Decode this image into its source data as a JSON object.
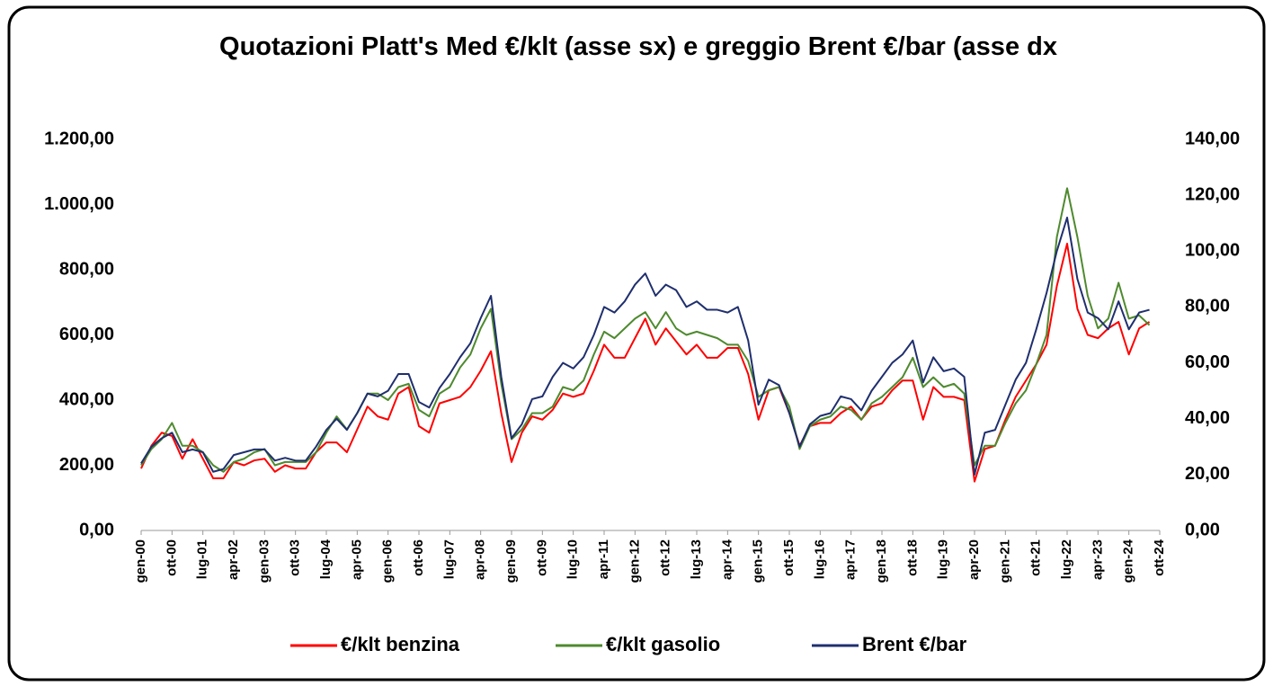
{
  "chart_data": {
    "type": "line",
    "title": "Quotazioni Platt's Med €/klt (asse sx) e greggio Brent €/bar (asse dx",
    "categories": [
      "gen-00",
      null,
      null,
      "ott-00",
      null,
      null,
      "lug-01",
      null,
      null,
      "apr-02",
      null,
      null,
      "gen-03",
      null,
      null,
      "ott-03",
      null,
      null,
      "lug-04",
      null,
      null,
      "apr-05",
      null,
      null,
      "gen-06",
      null,
      null,
      "ott-06",
      null,
      null,
      "lug-07",
      null,
      null,
      "apr-08",
      null,
      null,
      "gen-09",
      null,
      null,
      "ott-09",
      null,
      null,
      "lug-10",
      null,
      null,
      "apr-11",
      null,
      null,
      "gen-12",
      null,
      null,
      "ott-12",
      null,
      null,
      "lug-13",
      null,
      null,
      "apr-14",
      null,
      null,
      "gen-15",
      null,
      null,
      "ott-15",
      null,
      null,
      "lug-16",
      null,
      null,
      "apr-17",
      null,
      null,
      "gen-18",
      null,
      null,
      "ott-18",
      null,
      null,
      "lug-19",
      null,
      null,
      "apr-20",
      null,
      null,
      "gen-21",
      null,
      null,
      "ott-21",
      null,
      null,
      "lug-22",
      null,
      null,
      "apr-23",
      null,
      null,
      "gen-24",
      null,
      null,
      "ott-24"
    ],
    "series": [
      {
        "name": "€/klt benzina",
        "color": "#ff0000",
        "axis": "y",
        "values": [
          190,
          260,
          300,
          290,
          220,
          280,
          220,
          160,
          160,
          210,
          200,
          215,
          220,
          180,
          200,
          190,
          190,
          240,
          270,
          270,
          240,
          310,
          380,
          350,
          340,
          420,
          440,
          320,
          300,
          390,
          400,
          410,
          440,
          490,
          550,
          360,
          210,
          300,
          350,
          340,
          370,
          420,
          410,
          420,
          490,
          570,
          530,
          530,
          590,
          650,
          570,
          620,
          580,
          540,
          570,
          530,
          530,
          560,
          560,
          480,
          340,
          430,
          440,
          360,
          260,
          320,
          330,
          330,
          360,
          380,
          340,
          380,
          390,
          430,
          460,
          460,
          340,
          440,
          410,
          410,
          400,
          150,
          250,
          260,
          340,
          410,
          460,
          510,
          570,
          750,
          880,
          680,
          600,
          590,
          620,
          640,
          540,
          620,
          640,
          null
        ]
      },
      {
        "name": "€/klt gasolio",
        "color": "#4e8a2e",
        "axis": "y",
        "values": [
          200,
          250,
          280,
          330,
          260,
          260,
          240,
          200,
          180,
          210,
          220,
          240,
          250,
          200,
          210,
          210,
          210,
          240,
          300,
          350,
          310,
          360,
          420,
          420,
          400,
          440,
          450,
          370,
          350,
          420,
          440,
          500,
          540,
          620,
          680,
          450,
          280,
          310,
          360,
          360,
          380,
          440,
          430,
          460,
          540,
          610,
          590,
          620,
          650,
          670,
          620,
          670,
          620,
          600,
          610,
          600,
          590,
          570,
          570,
          520,
          410,
          430,
          440,
          380,
          250,
          320,
          340,
          350,
          380,
          370,
          340,
          390,
          410,
          440,
          470,
          530,
          440,
          470,
          440,
          450,
          420,
          200,
          260,
          260,
          330,
          390,
          430,
          510,
          600,
          900,
          1050,
          900,
          720,
          620,
          650,
          760,
          650,
          660,
          630,
          null
        ]
      },
      {
        "name": "Brent €/bar",
        "color": "#1f2f6e",
        "axis": "y2",
        "values": [
          24,
          30,
          33,
          35,
          28,
          29,
          28,
          21,
          22,
          27,
          28,
          29,
          29,
          25,
          26,
          25,
          25,
          30,
          36,
          40,
          36,
          42,
          49,
          48,
          50,
          56,
          56,
          46,
          44,
          51,
          56,
          62,
          67,
          76,
          84,
          55,
          33,
          38,
          47,
          48,
          55,
          60,
          58,
          62,
          70,
          80,
          78,
          82,
          88,
          92,
          84,
          88,
          86,
          80,
          82,
          79,
          79,
          78,
          80,
          68,
          45,
          54,
          52,
          42,
          30,
          38,
          41,
          42,
          48,
          47,
          43,
          50,
          55,
          60,
          63,
          68,
          53,
          62,
          57,
          58,
          55,
          20,
          35,
          36,
          45,
          54,
          60,
          72,
          85,
          100,
          112,
          90,
          78,
          76,
          72,
          82,
          72,
          78,
          79,
          null
        ]
      }
    ],
    "ylim": [
      0,
      1200
    ],
    "yticks": [
      {
        "value": 0,
        "label": "0,00"
      },
      {
        "value": 200,
        "label": "200,00"
      },
      {
        "value": 400,
        "label": "400,00"
      },
      {
        "value": 600,
        "label": "600,00"
      },
      {
        "value": 800,
        "label": "800,00"
      },
      {
        "value": 1000,
        "label": "1.000,00"
      },
      {
        "value": 1200,
        "label": "1.200,00"
      }
    ],
    "y2lim": [
      0,
      140
    ],
    "y2ticks": [
      {
        "value": 0,
        "label": "0,00"
      },
      {
        "value": 20,
        "label": "20,00"
      },
      {
        "value": 40,
        "label": "40,00"
      },
      {
        "value": 60,
        "label": "60,00"
      },
      {
        "value": 80,
        "label": "80,00"
      },
      {
        "value": 100,
        "label": "100,00"
      },
      {
        "value": 120,
        "label": "120,00"
      },
      {
        "value": 140,
        "label": "140,00"
      }
    ],
    "grid": false,
    "legend": "bottom"
  }
}
